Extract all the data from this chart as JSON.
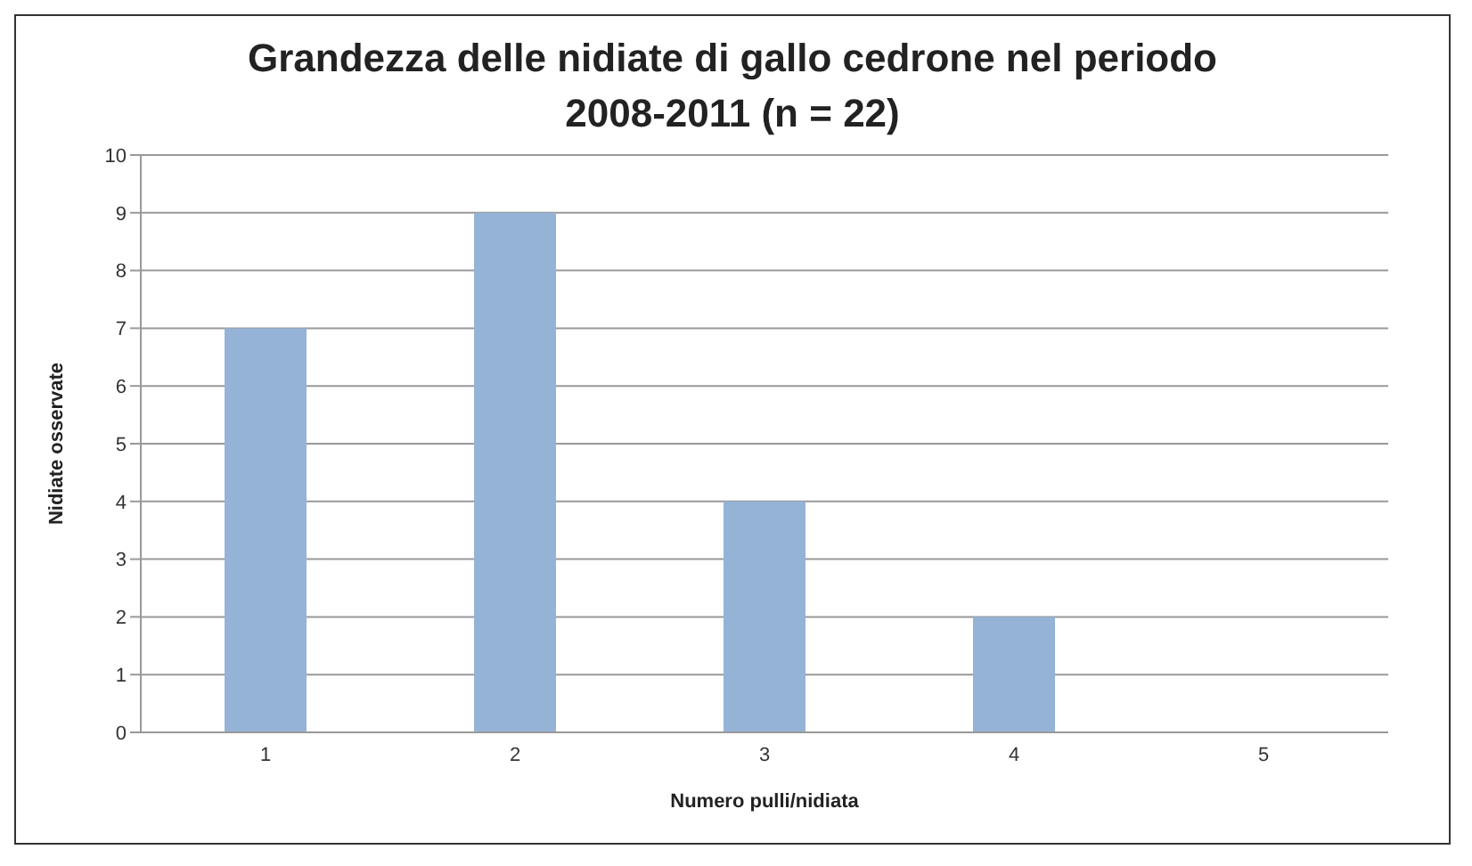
{
  "chart_data": {
    "type": "bar",
    "title": "Grandezza delle nidiate di gallo cedrone nel periodo 2008-2011 (n = 22)",
    "xlabel": "Numero pulli/nidiata",
    "ylabel": "Nidiate osservate",
    "categories": [
      "1",
      "2",
      "3",
      "4",
      "5"
    ],
    "values": [
      7,
      9,
      4,
      2,
      0
    ],
    "color": "#95b3d7",
    "ylim": [
      0,
      10
    ],
    "yticks": [
      0,
      1,
      2,
      3,
      4,
      5,
      6,
      7,
      8,
      9,
      10
    ],
    "grid": "y"
  }
}
